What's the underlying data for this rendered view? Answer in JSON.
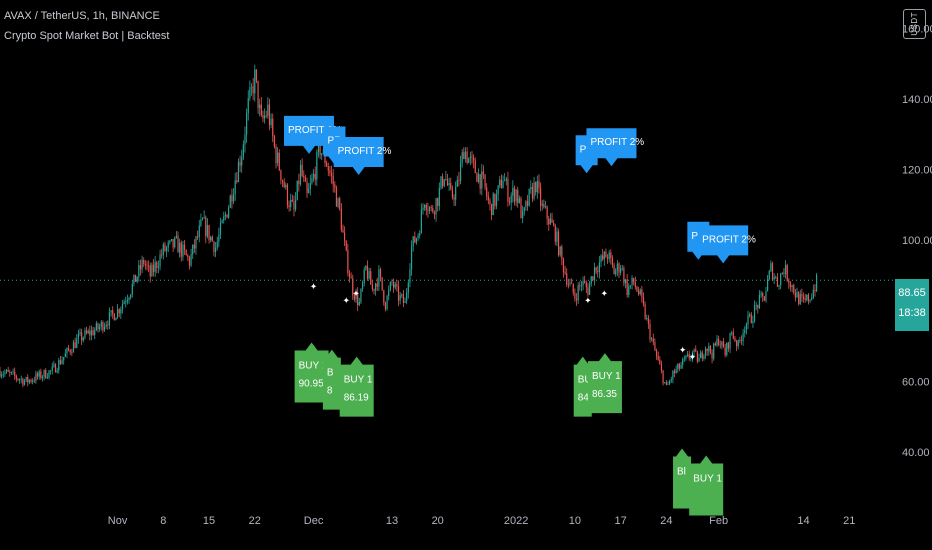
{
  "header": {
    "title": "AVAX / TetherUS, 1h, BINANCE",
    "indicator": "Crypto Spot Market Bot | Backtest"
  },
  "currency_label": "USDT",
  "last_price": {
    "value": "88.65",
    "countdown": "18:38"
  },
  "colors": {
    "background": "#000000",
    "up": "#26a69a",
    "down": "#ef5350",
    "profit_label": "#2196f3",
    "buy_label": "#4caf50",
    "axis_text": "#b2b5be"
  },
  "chart_data": {
    "type": "candlestick",
    "title": "",
    "xlabel": "",
    "ylabel": "",
    "ylim": [
      25,
      168
    ],
    "y_ticks": [
      "160.00",
      "140.00",
      "120.00",
      "100.00",
      "80.00",
      "60.00",
      "40.00"
    ],
    "y_tick_values": [
      160,
      140,
      120,
      100,
      80,
      60,
      40
    ],
    "x_ticks": [
      "Nov",
      "8",
      "15",
      "22",
      "Dec",
      "13",
      "20",
      "2022",
      "10",
      "17",
      "24",
      "Feb",
      "14",
      "21"
    ],
    "x_tick_values": [
      0,
      7,
      14,
      21,
      30,
      42,
      49,
      61,
      70,
      77,
      84,
      92,
      105,
      112
    ],
    "xlim": [
      -18,
      119
    ],
    "price_path": [
      [
        -18,
        63
      ],
      [
        -14,
        60
      ],
      [
        -10,
        63
      ],
      [
        -6,
        72
      ],
      [
        -3,
        75
      ],
      [
        0,
        80
      ],
      [
        2,
        86
      ],
      [
        4,
        94
      ],
      [
        5,
        90
      ],
      [
        7,
        97
      ],
      [
        9,
        99
      ],
      [
        11,
        94
      ],
      [
        13,
        105
      ],
      [
        15,
        98
      ],
      [
        17,
        110
      ],
      [
        19,
        125
      ],
      [
        20,
        138
      ],
      [
        21,
        146
      ],
      [
        22,
        133
      ],
      [
        23,
        137
      ],
      [
        24,
        126
      ],
      [
        26,
        112
      ],
      [
        27,
        108
      ],
      [
        28,
        120
      ],
      [
        29,
        112
      ],
      [
        30,
        118
      ],
      [
        31,
        126
      ],
      [
        32,
        122
      ],
      [
        33,
        116
      ],
      [
        34,
        108
      ],
      [
        35,
        95
      ],
      [
        36,
        86
      ],
      [
        37,
        82
      ],
      [
        38,
        92
      ],
      [
        39,
        86
      ],
      [
        40,
        90
      ],
      [
        41,
        82
      ],
      [
        42,
        88
      ],
      [
        43,
        84
      ],
      [
        44,
        82
      ],
      [
        45,
        98
      ],
      [
        46,
        102
      ],
      [
        47,
        112
      ],
      [
        48,
        108
      ],
      [
        49,
        112
      ],
      [
        50,
        119
      ],
      [
        51,
        112
      ],
      [
        52,
        115
      ],
      [
        53,
        126
      ],
      [
        54,
        122
      ],
      [
        55,
        119
      ],
      [
        56,
        116
      ],
      [
        57,
        109
      ],
      [
        58,
        112
      ],
      [
        59,
        118
      ],
      [
        60,
        112
      ],
      [
        61,
        114
      ],
      [
        62,
        106
      ],
      [
        63,
        112
      ],
      [
        64,
        116
      ],
      [
        65,
        109
      ],
      [
        66,
        106
      ],
      [
        67,
        102
      ],
      [
        68,
        94
      ],
      [
        69,
        88
      ],
      [
        70,
        84
      ],
      [
        71,
        88
      ],
      [
        72,
        86
      ],
      [
        73,
        92
      ],
      [
        74,
        94
      ],
      [
        75,
        96
      ],
      [
        76,
        91
      ],
      [
        77,
        93
      ],
      [
        78,
        86
      ],
      [
        79,
        88
      ],
      [
        80,
        84
      ],
      [
        81,
        77
      ],
      [
        82,
        70
      ],
      [
        83,
        64
      ],
      [
        84,
        58
      ],
      [
        85,
        62
      ],
      [
        86,
        64
      ],
      [
        87,
        66
      ],
      [
        88,
        68
      ],
      [
        89,
        66
      ],
      [
        90,
        70
      ],
      [
        91,
        68
      ],
      [
        92,
        72
      ],
      [
        93,
        68
      ],
      [
        94,
        74
      ],
      [
        95,
        70
      ],
      [
        96,
        76
      ],
      [
        97,
        78
      ],
      [
        98,
        82
      ],
      [
        99,
        84
      ],
      [
        100,
        92
      ],
      [
        101,
        88
      ],
      [
        102,
        92
      ],
      [
        103,
        88
      ],
      [
        104,
        84
      ],
      [
        105,
        82
      ],
      [
        106,
        84
      ],
      [
        107,
        88
      ]
    ],
    "profit_labels": [
      {
        "x": 29.3,
        "y": 125,
        "text": "PROFIT 2%"
      },
      {
        "x": 33.2,
        "y": 122,
        "text": "PR"
      },
      {
        "x": 36.9,
        "y": 119,
        "text": "PROFIT 2%"
      },
      {
        "x": 71.8,
        "y": 119.5,
        "text": "PR"
      },
      {
        "x": 75.6,
        "y": 121.5,
        "text": "PROFIT 2%"
      },
      {
        "x": 88.9,
        "y": 95,
        "text": "PF"
      },
      {
        "x": 92.7,
        "y": 94,
        "text": "PROFIT 2%"
      }
    ],
    "buy_labels": [
      {
        "x": 29.7,
        "y": 71,
        "text": "BUY 1",
        "price": "90.95"
      },
      {
        "x": 32.8,
        "y": 69,
        "text": "B",
        "price": "8"
      },
      {
        "x": 36.6,
        "y": 67,
        "text": "BUY 1",
        "price": "86.19"
      },
      {
        "x": 71.2,
        "y": 67,
        "text": "BU",
        "price": "84"
      },
      {
        "x": 74.6,
        "y": 68,
        "text": "BUY 1",
        "price": "86.35"
      },
      {
        "x": 86.4,
        "y": 41,
        "text": "Bl",
        "price": ""
      },
      {
        "x": 90.1,
        "y": 39,
        "text": "BUY 1",
        "price": ""
      }
    ],
    "last_price_line": 88.65
  }
}
